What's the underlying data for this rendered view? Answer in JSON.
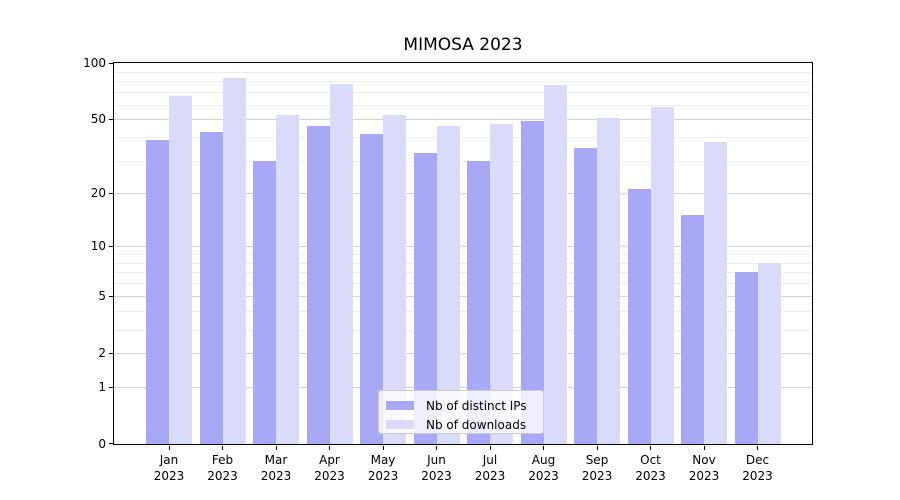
{
  "chart_data": {
    "type": "bar",
    "title": "MIMOSA 2023",
    "categories": [
      "Jan 2023",
      "Feb 2023",
      "Mar 2023",
      "Apr 2023",
      "May 2023",
      "Jun 2023",
      "Jul 2023",
      "Aug 2023",
      "Sep 2023",
      "Oct 2023",
      "Nov 2023",
      "Dec 2023"
    ],
    "series": [
      {
        "name": "Nb of distinct IPs",
        "color": "#a8a8f7",
        "values": [
          39,
          43,
          30,
          46,
          42,
          33,
          30,
          49,
          35,
          21,
          15,
          7
        ]
      },
      {
        "name": "Nb of downloads",
        "color": "#dadaf9",
        "values": [
          67,
          83,
          53,
          77,
          53,
          46,
          47,
          76,
          51,
          58,
          38,
          8
        ]
      }
    ],
    "xlabel": "",
    "ylabel": "",
    "y_scale": "log1p",
    "ylim": [
      0,
      100
    ],
    "y_major_ticks": [
      0,
      1,
      2,
      5,
      10,
      20,
      50,
      100
    ],
    "y_minor_gridlines": [
      3,
      4,
      6,
      7,
      8,
      9,
      30,
      40,
      60,
      70,
      80,
      90
    ],
    "grid": true,
    "legend_position": "lower center"
  },
  "colors": {
    "grid_major": "#d2d2d2",
    "grid_minor": "#ececec",
    "axis": "#000000",
    "text": "#000000",
    "legend_border": "#cccccc"
  }
}
